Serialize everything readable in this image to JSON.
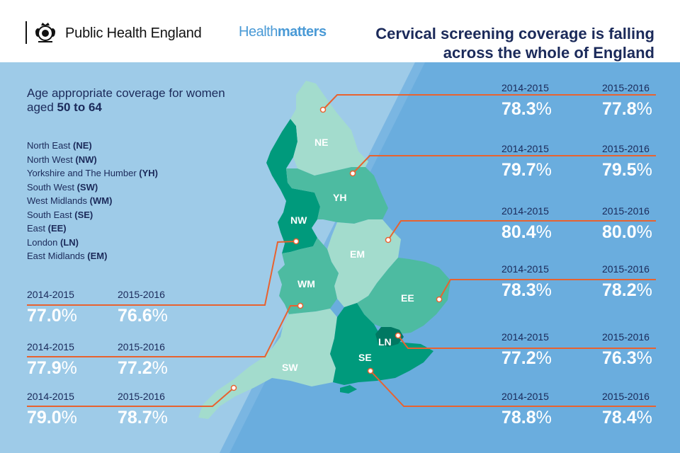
{
  "header": {
    "org_name": "Public Health England",
    "org_icon": "royal-crest-icon",
    "hm_part1": "Health",
    "hm_part2": "matters",
    "title_line1": "Cervical screening coverage is falling",
    "title_line2": "across the whole of England"
  },
  "subtitle": {
    "line1": "Age appropriate coverage for women",
    "line2_prefix": "aged ",
    "line2_bold": "50 to 64"
  },
  "legend": [
    {
      "name": "North East",
      "code": "(NE)"
    },
    {
      "name": "North West",
      "code": "(NW)"
    },
    {
      "name": "Yorkshire and The Humber",
      "code": "(YH)"
    },
    {
      "name": "South West",
      "code": "(SW)"
    },
    {
      "name": "West Midlands",
      "code": "(WM)"
    },
    {
      "name": "South East",
      "code": "(SE)"
    },
    {
      "name": "East",
      "code": "(EE)"
    },
    {
      "name": "London",
      "code": "(LN)"
    },
    {
      "name": "East Midlands",
      "code": "(EM)"
    }
  ],
  "map_labels": {
    "NE": "NE",
    "NW": "NW",
    "YH": "YH",
    "EM": "EM",
    "WM": "WM",
    "EE": "EE",
    "LN": "LN",
    "SW": "SW",
    "SE": "SE"
  },
  "stats": {
    "ne": {
      "year1": "2014-2015",
      "year2": "2015-2016",
      "value1": "78.3",
      "value2": "77.8"
    },
    "yh": {
      "year1": "2014-2015",
      "year2": "2015-2016",
      "value1": "79.7",
      "value2": "79.5"
    },
    "em": {
      "year1": "2014-2015",
      "year2": "2015-2016",
      "value1": "80.4",
      "value2": "80.0"
    },
    "ee": {
      "year1": "2014-2015",
      "year2": "2015-2016",
      "value1": "78.3",
      "value2": "78.2"
    },
    "ln": {
      "year1": "2014-2015",
      "year2": "2015-2016",
      "value1": "77.2",
      "value2": "76.3"
    },
    "se": {
      "year1": "2014-2015",
      "year2": "2015-2016",
      "value1": "78.8",
      "value2": "78.4"
    },
    "nw": {
      "year1": "2014-2015",
      "year2": "2015-2016",
      "value1": "77.0",
      "value2": "76.6"
    },
    "wm": {
      "year1": "2014-2015",
      "year2": "2015-2016",
      "value1": "77.9",
      "value2": "77.2"
    },
    "sw": {
      "year1": "2014-2015",
      "year2": "2015-2016",
      "value1": "79.0",
      "value2": "78.7"
    }
  },
  "percent_sign": "%",
  "colors": {
    "leader": "#e8622f",
    "dark_green": "#009a7c",
    "mid_green": "#4dbba1",
    "light_green": "#a3dccd",
    "title_navy": "#1b2a5a"
  }
}
